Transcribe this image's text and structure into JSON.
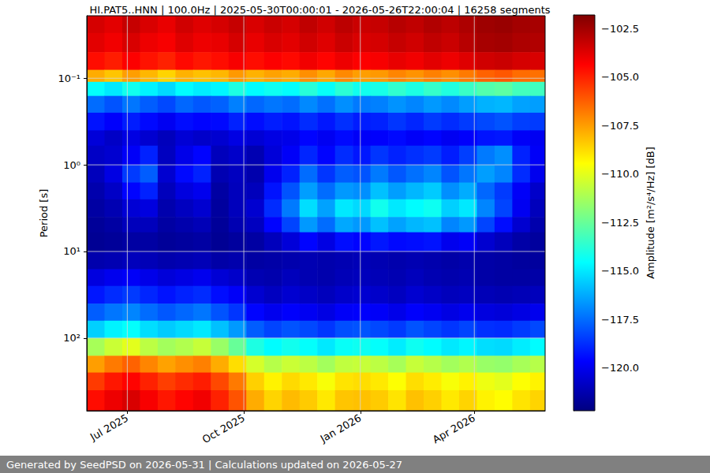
{
  "chart_data": {
    "type": "heatmap",
    "title": "HI.PAT5..HNN | 100.0Hz | 2025-05-30T00:00:01 - 2026-05-26T22:00:04 | 16258 segments",
    "footer": "Generated by SeedPSD on 2026-05-31 | Calculations updated on 2026-05-27",
    "ylabel": "Period [s]",
    "log": "y",
    "grid": true,
    "xlim": [
      "2025-05-30T00:00:01",
      "2026-05-26T22:00:04"
    ],
    "xticks": [
      {
        "value": "2025-07-01",
        "label": "Jul 2025"
      },
      {
        "value": "2025-10-01",
        "label": "Oct 2025"
      },
      {
        "value": "2026-01-01",
        "label": "Jan 2026"
      },
      {
        "value": "2026-04-01",
        "label": "Apr 2026"
      }
    ],
    "ylim": [
      690,
      0.019
    ],
    "yticks": [
      {
        "value": 0.1,
        "label": "10⁻¹"
      },
      {
        "value": 1,
        "label": "10⁰"
      },
      {
        "value": 10,
        "label": "10¹"
      },
      {
        "value": 100,
        "label": "10²"
      }
    ],
    "time_edges": [
      "2025-05-30T00:00:01",
      "2025-06-13",
      "2025-06-27",
      "2025-07-11",
      "2025-07-25",
      "2025-08-08",
      "2025-08-22",
      "2025-09-05",
      "2025-09-19",
      "2025-10-03",
      "2025-10-17",
      "2025-10-31",
      "2025-11-14",
      "2025-11-28",
      "2025-12-12",
      "2025-12-26",
      "2026-01-09",
      "2026-01-23",
      "2026-02-06",
      "2026-02-20",
      "2026-03-06",
      "2026-03-20",
      "2026-04-03",
      "2026-04-17",
      "2026-05-01",
      "2026-05-15",
      "2026-05-26T22:00:04"
    ],
    "period_edges": [
      0.019,
      0.03,
      0.05,
      0.08,
      0.11,
      0.16,
      0.25,
      0.4,
      0.6,
      1,
      1.6,
      2.5,
      4,
      6,
      10,
      16,
      25,
      40,
      63,
      100,
      160,
      250,
      400,
      690
    ],
    "cells": [
      [
        -103.5,
        -103.8,
        -103.2,
        -103.6,
        -103.9,
        -103.4,
        -103.7,
        -103.5,
        -103.2,
        -103.6,
        -103.3,
        -103.5,
        -103.1,
        -103.4,
        -103.0,
        -103.3,
        -103.2,
        -102.9,
        -103.1,
        -102.8,
        -103.0,
        -102.7,
        -102.4,
        -102.3,
        -102.5,
        -102.6
      ],
      [
        -103.8,
        -104.1,
        -103.6,
        -104.0,
        -104.2,
        -103.7,
        -104.0,
        -103.9,
        -103.5,
        -103.9,
        -103.6,
        -103.8,
        -103.4,
        -103.7,
        -103.3,
        -103.6,
        -103.5,
        -103.2,
        -103.4,
        -103.1,
        -103.3,
        -102.9,
        -102.6,
        -102.5,
        -102.7,
        -102.8
      ],
      [
        -104.6,
        -104.9,
        -104.3,
        -104.7,
        -105.0,
        -104.5,
        -104.8,
        -104.6,
        -104.2,
        -104.6,
        -104.3,
        -104.5,
        -104.1,
        -104.4,
        -104.0,
        -104.3,
        -104.2,
        -103.9,
        -104.1,
        -103.8,
        -104.0,
        -103.7,
        -103.4,
        -103.3,
        -103.5,
        -103.6
      ],
      [
        -107.8,
        -108.3,
        -107.5,
        -108.0,
        -108.6,
        -107.9,
        -108.2,
        -108.0,
        -107.4,
        -107.9,
        -107.6,
        -107.8,
        -107.2,
        -107.7,
        -107.1,
        -107.5,
        -107.4,
        -107.0,
        -107.3,
        -106.9,
        -107.2,
        -106.8,
        -106.3,
        -106.1,
        -106.5,
        -106.6
      ],
      [
        -114.5,
        -115.0,
        -114.2,
        -114.8,
        -115.3,
        -114.6,
        -114.9,
        -114.7,
        -114.0,
        -114.6,
        -114.3,
        -114.5,
        -113.8,
        -114.4,
        -113.7,
        -114.2,
        -114.1,
        -113.6,
        -114.0,
        -113.5,
        -113.9,
        -113.4,
        -112.9,
        -112.7,
        -113.2,
        -113.3
      ],
      [
        -117.5,
        -118.0,
        -117.3,
        -117.8,
        -118.2,
        -117.6,
        -117.9,
        -117.7,
        -117.1,
        -117.6,
        -117.3,
        -117.5,
        -116.9,
        -117.4,
        -116.8,
        -117.2,
        -117.1,
        -116.7,
        -117.0,
        -116.6,
        -116.9,
        -116.5,
        -116.1,
        -116.0,
        -116.4,
        -116.5
      ],
      [
        -119.3,
        -119.7,
        -119.1,
        -119.5,
        -119.9,
        -119.4,
        -119.6,
        -119.5,
        -119.0,
        -119.4,
        -119.1,
        -119.3,
        -118.8,
        -119.2,
        -118.7,
        -119.1,
        -119.0,
        -118.6,
        -118.9,
        -118.5,
        -118.8,
        -118.5,
        -118.2,
        -118.0,
        -118.4,
        -118.5
      ],
      [
        -120.4,
        -120.8,
        -120.2,
        -120.6,
        -121.0,
        -120.5,
        -120.7,
        -120.6,
        -120.2,
        -120.5,
        -120.2,
        -120.1,
        -119.6,
        -119.9,
        -119.5,
        -119.8,
        -119.7,
        -119.5,
        -119.8,
        -119.6,
        -119.9,
        -119.7,
        -119.3,
        -119.2,
        -119.8,
        -119.9
      ],
      [
        -120.8,
        -120.6,
        -119.8,
        -119.0,
        -120.9,
        -120.1,
        -119.6,
        -121.0,
        -120.7,
        -121.2,
        -120.4,
        -119.8,
        -118.9,
        -119.6,
        -118.8,
        -119.2,
        -118.6,
        -119.0,
        -118.7,
        -118.5,
        -119.1,
        -118.4,
        -117.2,
        -116.8,
        -119.0,
        -119.8
      ],
      [
        -121.0,
        -120.2,
        -118.5,
        -117.8,
        -120.6,
        -119.5,
        -119.0,
        -121.2,
        -120.9,
        -121.3,
        -120.0,
        -119.0,
        -117.5,
        -118.6,
        -117.8,
        -118.0,
        -117.2,
        -117.9,
        -117.4,
        -117.0,
        -118.0,
        -117.3,
        -116.5,
        -117.0,
        -118.8,
        -120.0
      ],
      [
        -121.3,
        -120.8,
        -119.6,
        -119.0,
        -121.0,
        -120.3,
        -120.0,
        -121.5,
        -121.0,
        -121.0,
        -119.3,
        -118.0,
        -116.5,
        -117.5,
        -116.6,
        -116.8,
        -115.8,
        -116.5,
        -116.0,
        -115.6,
        -116.8,
        -116.2,
        -117.6,
        -118.5,
        -119.8,
        -120.7
      ],
      [
        -121.5,
        -121.2,
        -120.5,
        -120.3,
        -121.3,
        -120.9,
        -120.6,
        -121.6,
        -121.0,
        -120.6,
        -118.8,
        -117.2,
        -115.2,
        -116.4,
        -115.0,
        -115.3,
        -114.2,
        -115.0,
        -114.6,
        -114.3,
        -115.5,
        -115.0,
        -117.0,
        -118.3,
        -119.9,
        -121.0
      ],
      [
        -121.7,
        -121.5,
        -121.0,
        -121.0,
        -121.5,
        -121.3,
        -121.1,
        -121.7,
        -121.2,
        -120.9,
        -119.6,
        -118.3,
        -116.6,
        -117.5,
        -116.3,
        -116.6,
        -115.8,
        -116.4,
        -116.0,
        -115.8,
        -117.0,
        -116.6,
        -118.3,
        -119.4,
        -120.6,
        -121.3
      ],
      [
        -121.8,
        -121.7,
        -121.5,
        -121.5,
        -121.7,
        -121.6,
        -121.5,
        -121.8,
        -121.6,
        -121.5,
        -121.0,
        -120.4,
        -119.6,
        -120.2,
        -119.4,
        -119.6,
        -119.2,
        -119.5,
        -119.4,
        -119.3,
        -120.0,
        -119.8,
        -120.6,
        -121.0,
        -121.4,
        -121.6
      ],
      [
        -121.3,
        -121.2,
        -121.0,
        -121.1,
        -121.3,
        -121.2,
        -121.1,
        -121.4,
        -121.3,
        -121.5,
        -121.4,
        -121.3,
        -121.2,
        -121.3,
        -121.2,
        -121.1,
        -121.2,
        -121.3,
        -121.2,
        -121.3,
        -121.4,
        -121.3,
        -121.4,
        -121.5,
        -121.6,
        -121.6
      ],
      [
        -120.3,
        -120.0,
        -119.8,
        -120.1,
        -120.4,
        -120.2,
        -120.0,
        -120.5,
        -120.7,
        -121.2,
        -121.3,
        -121.0,
        -121.2,
        -121.3,
        -121.1,
        -121.0,
        -121.1,
        -121.2,
        -121.0,
        -121.2,
        -121.3,
        -121.2,
        -121.4,
        -121.5,
        -121.5,
        -121.4
      ],
      [
        -119.2,
        -118.8,
        -118.5,
        -118.9,
        -119.3,
        -119.0,
        -118.8,
        -119.4,
        -119.8,
        -120.6,
        -120.9,
        -120.6,
        -120.8,
        -121.0,
        -120.7,
        -120.6,
        -120.7,
        -120.9,
        -120.6,
        -120.8,
        -121.0,
        -120.9,
        -121.1,
        -121.2,
        -121.1,
        -121.0
      ],
      [
        -117.8,
        -117.3,
        -117.0,
        -117.5,
        -117.9,
        -117.6,
        -117.3,
        -118.0,
        -118.6,
        -119.6,
        -120.0,
        -119.7,
        -119.9,
        -120.2,
        -119.8,
        -119.7,
        -119.8,
        -120.1,
        -119.7,
        -119.9,
        -120.2,
        -120.0,
        -120.3,
        -120.4,
        -120.2,
        -120.0
      ],
      [
        -115.5,
        -114.8,
        -114.5,
        -115.2,
        -115.6,
        -115.3,
        -115.0,
        -115.8,
        -116.6,
        -117.8,
        -118.3,
        -118.0,
        -118.2,
        -118.6,
        -118.1,
        -118.0,
        -118.2,
        -118.5,
        -118.0,
        -118.3,
        -118.6,
        -118.3,
        -118.7,
        -118.8,
        -118.5,
        -118.2
      ],
      [
        -111.2,
        -110.5,
        -110.0,
        -110.8,
        -111.3,
        -111.0,
        -110.6,
        -111.5,
        -112.5,
        -114.0,
        -114.6,
        -114.2,
        -114.5,
        -115.0,
        -114.4,
        -114.3,
        -114.5,
        -114.9,
        -114.3,
        -114.6,
        -115.0,
        -114.7,
        -115.2,
        -115.3,
        -114.9,
        -114.6
      ],
      [
        -107.5,
        -106.8,
        -106.3,
        -107.0,
        -107.6,
        -107.2,
        -106.9,
        -107.8,
        -108.8,
        -110.3,
        -110.9,
        -110.5,
        -110.8,
        -111.3,
        -110.7,
        -110.6,
        -110.8,
        -111.2,
        -110.6,
        -110.9,
        -111.3,
        -111.0,
        -111.5,
        -111.6,
        -111.2,
        -110.9
      ],
      [
        -105.5,
        -104.8,
        -104.4,
        -105.0,
        -105.6,
        -105.2,
        -104.9,
        -105.8,
        -106.8,
        -108.5,
        -109.2,
        -108.7,
        -109.0,
        -109.6,
        -108.9,
        -108.8,
        -109.0,
        -109.5,
        -108.8,
        -109.1,
        -109.6,
        -109.2,
        -109.8,
        -110.0,
        -109.5,
        -109.2
      ],
      [
        -104.6,
        -104.0,
        -103.6,
        -104.2,
        -104.8,
        -104.4,
        -104.1,
        -105.0,
        -106.0,
        -107.8,
        -108.6,
        -108.1,
        -108.4,
        -109.0,
        -108.3,
        -108.2,
        -108.4,
        -108.9,
        -108.2,
        -108.5,
        -109.0,
        -108.6,
        -109.2,
        -109.4,
        -108.9,
        -108.6
      ]
    ],
    "colorbar": {
      "label": "Amplitude [m²/s⁴/Hz] [dB]",
      "range": [
        -122.2,
        -101.8
      ],
      "ticks": [
        {
          "value": -120,
          "label": "−120.0"
        },
        {
          "value": -117.5,
          "label": "−117.5"
        },
        {
          "value": -115,
          "label": "−115.0"
        },
        {
          "value": -112.5,
          "label": "−112.5"
        },
        {
          "value": -110,
          "label": "−110.0"
        },
        {
          "value": -107.5,
          "label": "−107.5"
        },
        {
          "value": -105,
          "label": "−105.0"
        },
        {
          "value": -102.5,
          "label": "−102.5"
        }
      ]
    }
  }
}
